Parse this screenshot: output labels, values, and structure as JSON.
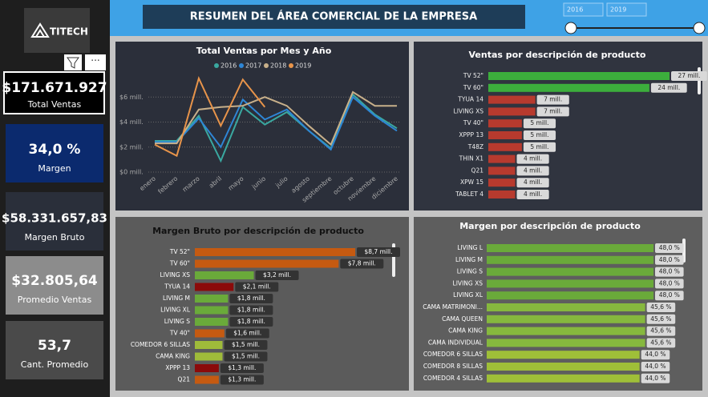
{
  "header": {
    "title": "RESUMEN DEL ÁREA COMERCIAL DE LA EMPRESA",
    "logo": "TITECH"
  },
  "slicer": {
    "from": "2016",
    "to": "2019"
  },
  "kpis": [
    {
      "value": "$171.671.927",
      "label": "Total Ventas"
    },
    {
      "value": "34,0 %",
      "label": "Margen"
    },
    {
      "value": "$58.331.657,83",
      "label": "Margen Bruto"
    },
    {
      "value": "$32.805,64",
      "label": "Promedio Ventas"
    },
    {
      "value": "53,7",
      "label": "Cant. Promedio"
    }
  ],
  "chart_data": [
    {
      "type": "line",
      "title": "Total Ventas por Mes y Año",
      "categories": [
        "enero",
        "febrero",
        "marzo",
        "abril",
        "mayo",
        "junio",
        "julio",
        "agosto",
        "septiembre",
        "octubre",
        "noviembre",
        "diciembre"
      ],
      "series": [
        {
          "name": "2016",
          "color": "#3aa8a0",
          "values": [
            2.5,
            2.5,
            4.5,
            0.9,
            5.2,
            3.8,
            4.8,
            3.3,
            1.9,
            6.2,
            4.6,
            3.5
          ]
        },
        {
          "name": "2017",
          "color": "#2e86d6",
          "values": [
            2.4,
            2.4,
            4.3,
            2.0,
            5.8,
            4.2,
            5.0,
            3.3,
            1.8,
            6.0,
            4.5,
            3.3
          ]
        },
        {
          "name": "2018",
          "color": "#c8b08a",
          "values": [
            2.3,
            2.3,
            5.0,
            5.2,
            5.3,
            6.0,
            5.3,
            3.7,
            2.2,
            6.4,
            5.3,
            5.3
          ]
        },
        {
          "name": "2019",
          "color": "#e8944a",
          "values": [
            2.2,
            1.3,
            7.5,
            3.7,
            7.4,
            5.2,
            null,
            null,
            null,
            null,
            null,
            null
          ]
        }
      ],
      "ylim": [
        0,
        8
      ],
      "yticks": [
        {
          "value": 0,
          "label": "$0 mill."
        },
        {
          "value": 2,
          "label": "$2 mill."
        },
        {
          "value": 4,
          "label": "$4 mill."
        },
        {
          "value": 6,
          "label": "$6 mill."
        }
      ],
      "grid": true
    },
    {
      "type": "hbar",
      "title": "Ventas por descripción de producto",
      "categories": [
        "TV 52\"",
        "TV 60\"",
        "TYUA 14",
        "LIVING XS",
        "TV 40\"",
        "XPPP 13",
        "T48Z",
        "THIN X1",
        "Q21",
        "XPW 15",
        "TABLET 4"
      ],
      "values": [
        27,
        24,
        7,
        7,
        5,
        5,
        5,
        4,
        4,
        4,
        4
      ],
      "value_labels": [
        "27 mill.",
        "24 mill.",
        "7 mill.",
        "7 mill.",
        "5 mill.",
        "5 mill.",
        "5 mill.",
        "4 mill.",
        "4 mill.",
        "4 mill.",
        "4 mill."
      ],
      "colors": [
        "#3cae3c",
        "#3cae3c",
        "#b73a2e",
        "#b73a2e",
        "#b73a2e",
        "#b73a2e",
        "#b73a2e",
        "#b73a2e",
        "#b73a2e",
        "#b73a2e",
        "#b73a2e"
      ]
    },
    {
      "type": "hbar",
      "title": "Margen Bruto por descripción de producto",
      "categories": [
        "TV 52\"",
        "TV 60\"",
        "LIVING XS",
        "TYUA 14",
        "LIVING M",
        "LIVING XL",
        "LIVING S",
        "TV 40\"",
        "COMEDOR 6 SILLAS",
        "CAMA KING",
        "XPPP 13",
        "Q21"
      ],
      "values": [
        8.7,
        7.8,
        3.2,
        2.1,
        1.8,
        1.8,
        1.8,
        1.6,
        1.5,
        1.5,
        1.3,
        1.3
      ],
      "value_labels": [
        "$8,7 mill.",
        "$7,8 mill.",
        "$3,2 mill.",
        "$2,1 mill.",
        "$1,8 mill.",
        "$1,8 mill.",
        "$1,8 mill.",
        "$1,6 mill.",
        "$1,5 mill.",
        "$1,5 mill.",
        "$1,3 mill.",
        "$1,3 mill."
      ],
      "colors": [
        "#c55a11",
        "#c55a11",
        "#6aaa3a",
        "#8b0a0a",
        "#6aaa3a",
        "#6aaa3a",
        "#6aaa3a",
        "#c55a11",
        "#9fbb3a",
        "#9fbb3a",
        "#8b0a0a",
        "#c55a11"
      ]
    },
    {
      "type": "hbar",
      "title": "Margen por descripción de producto",
      "categories": [
        "LIVING L",
        "LIVING M",
        "LIVING S",
        "LIVING XS",
        "LIVING XL",
        "CAMA MATRIMONI...",
        "CAMA QUEEN",
        "CAMA KING",
        "CAMA INDIVIDUAL",
        "COMEDOR 6 SILLAS",
        "COMEDOR 8 SILLAS",
        "COMEDOR 4 SILLAS"
      ],
      "values": [
        48.0,
        48.0,
        48.0,
        48.0,
        48.0,
        45.6,
        45.6,
        45.6,
        45.6,
        44.0,
        44.0,
        44.0
      ],
      "value_labels": [
        "48,0 %",
        "48,0 %",
        "48,0 %",
        "48,0 %",
        "48,0 %",
        "45,6 %",
        "45,6 %",
        "45,6 %",
        "45,6 %",
        "44,0 %",
        "44,0 %",
        "44,0 %"
      ],
      "colors": [
        "#6aaa3a",
        "#6aaa3a",
        "#6aaa3a",
        "#6aaa3a",
        "#6aaa3a",
        "#86b83e",
        "#86b83e",
        "#86b83e",
        "#86b83e",
        "#9fbf38",
        "#9fbf38",
        "#9fbf38"
      ]
    }
  ]
}
